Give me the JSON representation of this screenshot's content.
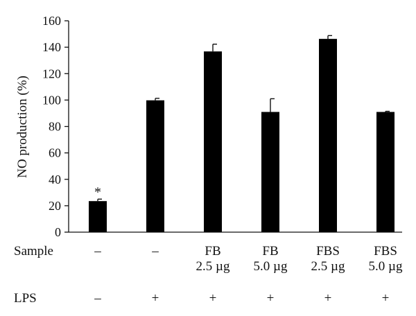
{
  "chart_data": {
    "type": "bar",
    "title": "",
    "xlabel": "",
    "ylabel": "NO production (%)",
    "ylim": [
      0,
      160
    ],
    "yticks": [
      0,
      20,
      40,
      60,
      80,
      100,
      120,
      140,
      160
    ],
    "grid": false,
    "legend": "none",
    "categories": [
      "–",
      "–",
      "FB 2.5 µg",
      "FB 5.0 µg",
      "FBS 2.5 µg",
      "FBS 5.0 µg"
    ],
    "values": [
      23.5,
      99.8,
      136.8,
      91.0,
      146.3,
      91.0
    ],
    "errors": [
      1.5,
      1.5,
      5.5,
      10.0,
      2.5,
      0.5
    ],
    "annotations": [
      "*",
      "",
      "",
      "",
      "",
      ""
    ],
    "bar_color": "#000000",
    "table_rows": [
      {
        "label": "Sample",
        "cells": [
          [
            "–"
          ],
          [
            "–"
          ],
          [
            "FB",
            "2.5 µg"
          ],
          [
            "FB",
            "5.0 µg"
          ],
          [
            "FBS",
            "2.5 µg"
          ],
          [
            "FBS",
            "5.0 µg"
          ]
        ]
      },
      {
        "label": "LPS",
        "cells": [
          [
            "–"
          ],
          [
            "+"
          ],
          [
            "+"
          ],
          [
            "+"
          ],
          [
            "+"
          ],
          [
            "+"
          ]
        ]
      }
    ]
  }
}
